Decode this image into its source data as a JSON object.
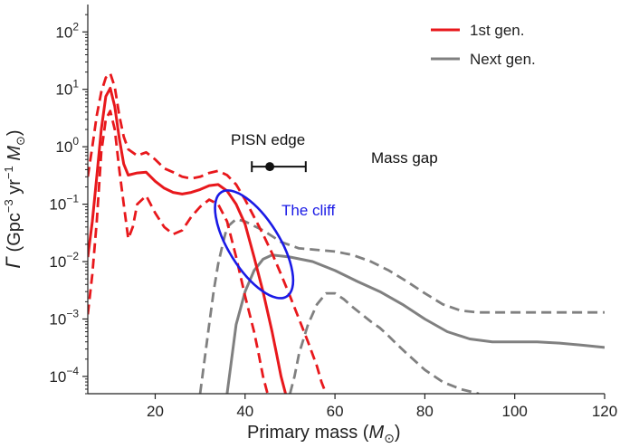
{
  "chart_data": {
    "type": "line",
    "title": "",
    "xlabel": {
      "prefix": "Primary mass (",
      "symbol": "M",
      "sub": "⊙",
      "suffix": ")"
    },
    "ylabel": {
      "gamma": "Γ",
      "p1": " (Gpc",
      "sup1": "−3",
      "p2": " yr",
      "sup2": "−1",
      "p3": " M",
      "sub": "⊙",
      "p4": ")"
    },
    "x_scale": "linear",
    "y_scale": "log",
    "xlim": [
      5,
      120
    ],
    "ylim": [
      5e-05,
      300
    ],
    "x_ticks": [
      20,
      40,
      60,
      80,
      100,
      120
    ],
    "x_tick_labels": [
      "20",
      "40",
      "60",
      "80",
      "100",
      "120"
    ],
    "y_ticks": [
      {
        "base": "10",
        "exp": "−4",
        "value": 0.0001
      },
      {
        "base": "10",
        "exp": "−3",
        "value": 0.001
      },
      {
        "base": "10",
        "exp": "−2",
        "value": 0.01
      },
      {
        "base": "10",
        "exp": "−1",
        "value": 0.1
      },
      {
        "base": "10",
        "exp": "0",
        "value": 1
      },
      {
        "base": "10",
        "exp": "1",
        "value": 10
      },
      {
        "base": "10",
        "exp": "2",
        "value": 100
      }
    ],
    "grid": false,
    "legend_position": "top-right",
    "series": [
      {
        "name": "1st gen.",
        "color": "#e8181c",
        "style": "solid",
        "points": [
          [
            5,
            0.012
          ],
          [
            6,
            0.05
          ],
          [
            7,
            0.3
          ],
          [
            8,
            2
          ],
          [
            9,
            7.5
          ],
          [
            10,
            10.5
          ],
          [
            11,
            5
          ],
          [
            12,
            1.4
          ],
          [
            13,
            0.5
          ],
          [
            14,
            0.32
          ],
          [
            16,
            0.35
          ],
          [
            18,
            0.36
          ],
          [
            20,
            0.25
          ],
          [
            22,
            0.19
          ],
          [
            24,
            0.16
          ],
          [
            26,
            0.15
          ],
          [
            28,
            0.16
          ],
          [
            30,
            0.18
          ],
          [
            32,
            0.21
          ],
          [
            34,
            0.22
          ],
          [
            36,
            0.17
          ],
          [
            38,
            0.1
          ],
          [
            40,
            0.045
          ],
          [
            42,
            0.012
          ],
          [
            44,
            0.003
          ],
          [
            46,
            0.0006
          ],
          [
            47,
            0.00025
          ],
          [
            48,
            0.0001
          ],
          [
            49,
            5e-05
          ]
        ]
      },
      {
        "name": "1st gen. upper",
        "color": "#e8181c",
        "style": "dashed",
        "points": [
          [
            5,
            0.3
          ],
          [
            6,
            1
          ],
          [
            7,
            3.5
          ],
          [
            8,
            9
          ],
          [
            9,
            16
          ],
          [
            10,
            19
          ],
          [
            11,
            11
          ],
          [
            12,
            3.5
          ],
          [
            13,
            1.5
          ],
          [
            14,
            0.9
          ],
          [
            16,
            0.7
          ],
          [
            18,
            0.8
          ],
          [
            20,
            0.6
          ],
          [
            22,
            0.42
          ],
          [
            24,
            0.36
          ],
          [
            26,
            0.3
          ],
          [
            28,
            0.28
          ],
          [
            30,
            0.3
          ],
          [
            32,
            0.35
          ],
          [
            34,
            0.38
          ],
          [
            36,
            0.32
          ],
          [
            38,
            0.22
          ],
          [
            40,
            0.12
          ],
          [
            42,
            0.06
          ],
          [
            44,
            0.03
          ],
          [
            46,
            0.014
          ],
          [
            48,
            0.006
          ],
          [
            50,
            0.0025
          ],
          [
            52,
            0.001
          ],
          [
            54,
            0.0004
          ],
          [
            56,
            0.00015
          ],
          [
            57,
            8e-05
          ],
          [
            58,
            5e-05
          ]
        ]
      },
      {
        "name": "1st gen. lower",
        "color": "#e8181c",
        "style": "dashed",
        "points": [
          [
            5,
            0.0012
          ],
          [
            6,
            0.006
          ],
          [
            7,
            0.05
          ],
          [
            8,
            0.8
          ],
          [
            9,
            3
          ],
          [
            10,
            4.2
          ],
          [
            11,
            2
          ],
          [
            12,
            0.4
          ],
          [
            13,
            0.1
          ],
          [
            14,
            0.025
          ],
          [
            15,
            0.04
          ],
          [
            16,
            0.1
          ],
          [
            18,
            0.14
          ],
          [
            20,
            0.07
          ],
          [
            22,
            0.04
          ],
          [
            24,
            0.03
          ],
          [
            26,
            0.035
          ],
          [
            28,
            0.06
          ],
          [
            30,
            0.09
          ],
          [
            32,
            0.12
          ],
          [
            34,
            0.1
          ],
          [
            36,
            0.05
          ],
          [
            38,
            0.012
          ],
          [
            40,
            0.0025
          ],
          [
            42,
            0.0006
          ],
          [
            43,
            0.00025
          ],
          [
            44,
            0.0001
          ],
          [
            45,
            5e-05
          ]
        ]
      },
      {
        "name": "Next gen.",
        "color": "#808080",
        "style": "solid",
        "points": [
          [
            36,
            5e-05
          ],
          [
            37,
            0.0002
          ],
          [
            38,
            0.0008
          ],
          [
            40,
            0.003
          ],
          [
            42,
            0.007
          ],
          [
            44,
            0.011
          ],
          [
            46,
            0.013
          ],
          [
            50,
            0.012
          ],
          [
            55,
            0.01
          ],
          [
            60,
            0.007
          ],
          [
            65,
            0.0045
          ],
          [
            70,
            0.003
          ],
          [
            75,
            0.0018
          ],
          [
            80,
            0.001
          ],
          [
            85,
            0.0006
          ],
          [
            90,
            0.00045
          ],
          [
            95,
            0.0004
          ],
          [
            100,
            0.0004
          ],
          [
            105,
            0.0004
          ],
          [
            110,
            0.00038
          ],
          [
            115,
            0.00035
          ],
          [
            120,
            0.00032
          ]
        ]
      },
      {
        "name": "Next gen. upper",
        "color": "#808080",
        "style": "dashed",
        "points": [
          [
            30,
            5e-05
          ],
          [
            31,
            0.0002
          ],
          [
            32,
            0.0008
          ],
          [
            33,
            0.003
          ],
          [
            34,
            0.009
          ],
          [
            35,
            0.02
          ],
          [
            36,
            0.04
          ],
          [
            38,
            0.055
          ],
          [
            40,
            0.05
          ],
          [
            44,
            0.035
          ],
          [
            48,
            0.022
          ],
          [
            52,
            0.017
          ],
          [
            56,
            0.016
          ],
          [
            60,
            0.015
          ],
          [
            64,
            0.013
          ],
          [
            68,
            0.01
          ],
          [
            72,
            0.007
          ],
          [
            76,
            0.0045
          ],
          [
            80,
            0.0028
          ],
          [
            84,
            0.0018
          ],
          [
            88,
            0.0014
          ],
          [
            92,
            0.0013
          ],
          [
            96,
            0.0013
          ],
          [
            100,
            0.0013
          ],
          [
            110,
            0.0013
          ],
          [
            120,
            0.0013
          ]
        ]
      },
      {
        "name": "Next gen. lower",
        "color": "#808080",
        "style": "dashed",
        "points": [
          [
            50,
            5e-05
          ],
          [
            51,
            0.0001
          ],
          [
            52,
            0.00025
          ],
          [
            54,
            0.0008
          ],
          [
            56,
            0.0018
          ],
          [
            58,
            0.0028
          ],
          [
            60,
            0.0028
          ],
          [
            62,
            0.0022
          ],
          [
            64,
            0.0016
          ],
          [
            66,
            0.0012
          ],
          [
            68,
            0.0009
          ],
          [
            70,
            0.0007
          ],
          [
            72,
            0.0005
          ],
          [
            74,
            0.00035
          ],
          [
            76,
            0.00025
          ],
          [
            78,
            0.00018
          ],
          [
            80,
            0.00013
          ],
          [
            84,
            8e-05
          ],
          [
            88,
            6e-05
          ],
          [
            92,
            5e-05
          ]
        ]
      }
    ],
    "annotations": {
      "pisn_label": "PISN edge",
      "pisn_point": {
        "x": 45.5,
        "y": 0.45,
        "xerr": [
          41.5,
          53.5
        ]
      },
      "mass_gap_label": "Mass gap",
      "cliff_label": "The cliff",
      "cliff_ellipse": {
        "cx_data": 42,
        "cy_data": 0.02,
        "color": "#1a1ae6"
      }
    },
    "legend": [
      {
        "label": "1st gen.",
        "color": "#e8181c"
      },
      {
        "label": "Next gen.",
        "color": "#808080"
      }
    ]
  }
}
